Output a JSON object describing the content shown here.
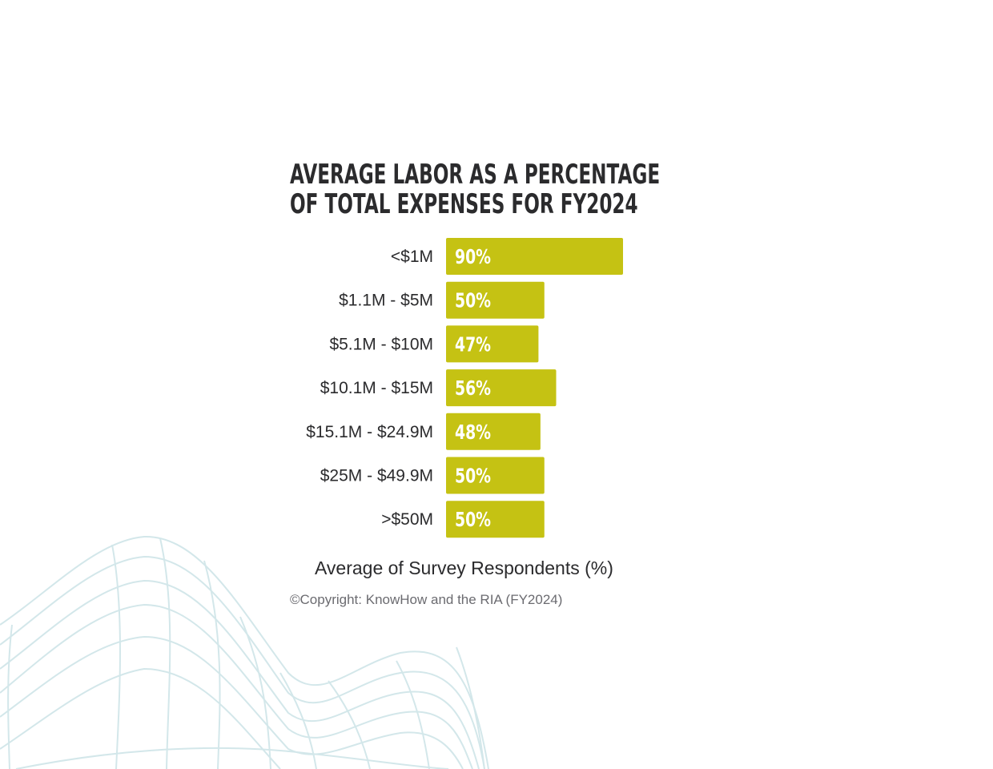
{
  "colors": {
    "bar": "#c5c213",
    "text": "#2b2b2d",
    "muted": "#6b6b70",
    "wave": "#d3e7ea"
  },
  "chart_data": {
    "type": "bar",
    "orientation": "horizontal",
    "title_lines": [
      "Average Labor as a Percentage",
      "of Total Expenses for FY2024"
    ],
    "categories": [
      "<$1M",
      "$1.1M - $5M",
      "$5.1M - $10M",
      "$10.1M - $15M",
      "$15.1M - $24.9M",
      "$25M - $49.9M",
      ">$50M"
    ],
    "values": [
      90,
      50,
      47,
      56,
      48,
      50,
      50
    ],
    "value_labels": [
      "90%",
      "50%",
      "47%",
      "56%",
      "48%",
      "50%",
      "50%"
    ],
    "xlabel": "Average of Survey Respondents (%)",
    "ylabel": "",
    "xlim": [
      0,
      90
    ],
    "grid": false,
    "legend": "none"
  },
  "footer": {
    "copyright": "©Copyright: KnowHow and the RIA (FY2024)"
  }
}
